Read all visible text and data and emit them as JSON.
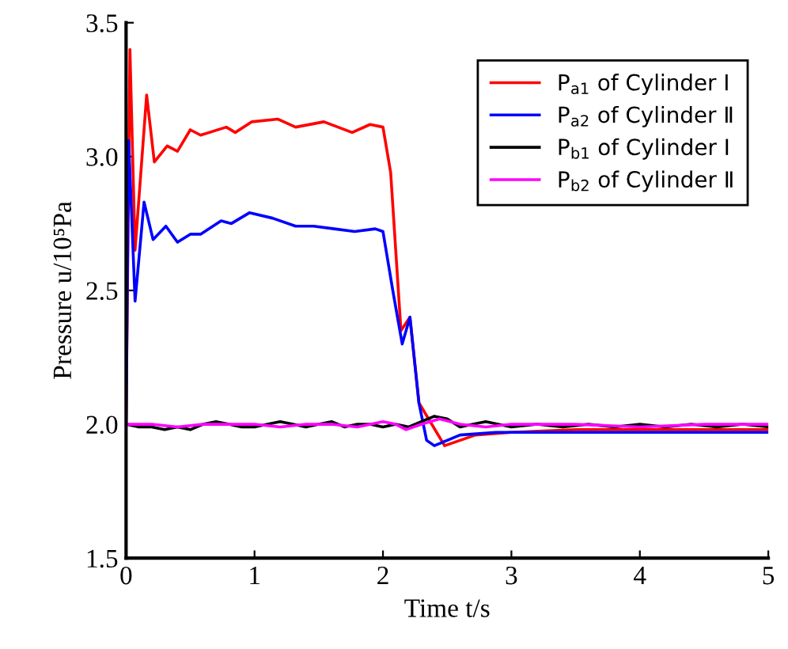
{
  "chart_data": {
    "type": "line",
    "xlabel": "Time t/s",
    "ylabel": "Pressure u/10⁵Pa",
    "xlim": [
      0,
      5
    ],
    "xticks": [
      0,
      1,
      2,
      3,
      4,
      5
    ],
    "ylim": [
      1.5,
      3.5
    ],
    "yticks": [
      {
        "value": 1.5,
        "label": "1.5"
      },
      {
        "value": 2.0,
        "label": "2.0"
      },
      {
        "value": 2.5,
        "label": "2.5"
      },
      {
        "value": 3.0,
        "label": "3.0"
      },
      {
        "value": 3.5,
        "label": "3.5"
      }
    ],
    "grid": false,
    "legend": "top right",
    "marker": "none",
    "line_style": "solid",
    "series": [
      {
        "name": "P$_{a1}$ of Cylinder Ⅰ",
        "color": "#ff0000",
        "x": [
          0,
          0.03,
          0.07,
          0.16,
          0.22,
          0.32,
          0.4,
          0.5,
          0.58,
          0.78,
          0.85,
          0.98,
          1.18,
          1.32,
          1.54,
          1.76,
          1.9,
          2.0,
          2.06,
          2.14,
          2.21,
          2.28,
          2.48,
          2.72,
          3.0,
          3.5,
          4.0,
          4.5,
          5.0
        ],
        "values": [
          2.0,
          3.4,
          2.65,
          3.23,
          2.98,
          3.04,
          3.02,
          3.1,
          3.08,
          3.11,
          3.09,
          3.13,
          3.14,
          3.11,
          3.13,
          3.09,
          3.12,
          3.11,
          2.94,
          2.35,
          2.4,
          2.08,
          1.92,
          1.96,
          1.97,
          1.98,
          1.98,
          1.98,
          1.98
        ]
      },
      {
        "name": "P$_{a2}$ of Cylinder Ⅱ",
        "color": "#0000ff",
        "x": [
          0,
          0.02,
          0.07,
          0.14,
          0.21,
          0.31,
          0.4,
          0.5,
          0.58,
          0.74,
          0.82,
          0.96,
          1.14,
          1.32,
          1.46,
          1.62,
          1.78,
          1.94,
          2.0,
          2.08,
          2.15,
          2.21,
          2.28,
          2.34,
          2.4,
          2.6,
          2.88,
          3.5,
          4.0,
          4.5,
          5.0
        ],
        "values": [
          2.0,
          3.06,
          2.46,
          2.83,
          2.69,
          2.74,
          2.68,
          2.71,
          2.71,
          2.76,
          2.75,
          2.79,
          2.77,
          2.74,
          2.74,
          2.73,
          2.72,
          2.73,
          2.72,
          2.49,
          2.3,
          2.4,
          2.08,
          1.94,
          1.92,
          1.96,
          1.97,
          1.97,
          1.97,
          1.97,
          1.97
        ]
      },
      {
        "name": "P$_{b1}$ of Cylinder Ⅰ",
        "color": "#000000",
        "x": [
          0,
          0.1,
          0.2,
          0.3,
          0.4,
          0.5,
          0.6,
          0.7,
          0.8,
          0.9,
          1.0,
          1.1,
          1.2,
          1.3,
          1.4,
          1.5,
          1.6,
          1.7,
          1.8,
          1.9,
          2.0,
          2.1,
          2.2,
          2.3,
          2.4,
          2.5,
          2.6,
          2.7,
          2.8,
          3.0,
          3.2,
          3.4,
          3.6,
          3.8,
          4.0,
          4.2,
          4.4,
          4.6,
          4.8,
          5.0
        ],
        "values": [
          2.0,
          1.99,
          1.99,
          1.98,
          1.99,
          1.98,
          2.0,
          2.01,
          2.0,
          1.99,
          1.99,
          2.0,
          2.01,
          2.0,
          1.99,
          2.0,
          2.01,
          1.99,
          2.0,
          2.0,
          1.99,
          2.0,
          1.99,
          2.01,
          2.03,
          2.02,
          1.99,
          2.0,
          2.01,
          1.99,
          2.0,
          1.99,
          2.0,
          1.99,
          2.0,
          1.99,
          2.0,
          1.99,
          2.0,
          1.99
        ]
      },
      {
        "name": "P$_{b2}$ of Cylinder Ⅱ",
        "color": "#ff00ff",
        "x": [
          0,
          0.2,
          0.4,
          0.6,
          0.8,
          1.0,
          1.2,
          1.4,
          1.6,
          1.8,
          2.0,
          2.1,
          2.18,
          2.3,
          2.44,
          2.6,
          2.8,
          3.0,
          3.5,
          4.0,
          4.5,
          5.0
        ],
        "values": [
          2.0,
          2.0,
          1.99,
          2.0,
          2.0,
          2.0,
          1.99,
          2.0,
          2.0,
          1.99,
          2.01,
          2.0,
          1.98,
          2.0,
          2.02,
          2.0,
          1.99,
          2.0,
          2.0,
          1.99,
          2.0,
          2.0
        ]
      }
    ]
  }
}
